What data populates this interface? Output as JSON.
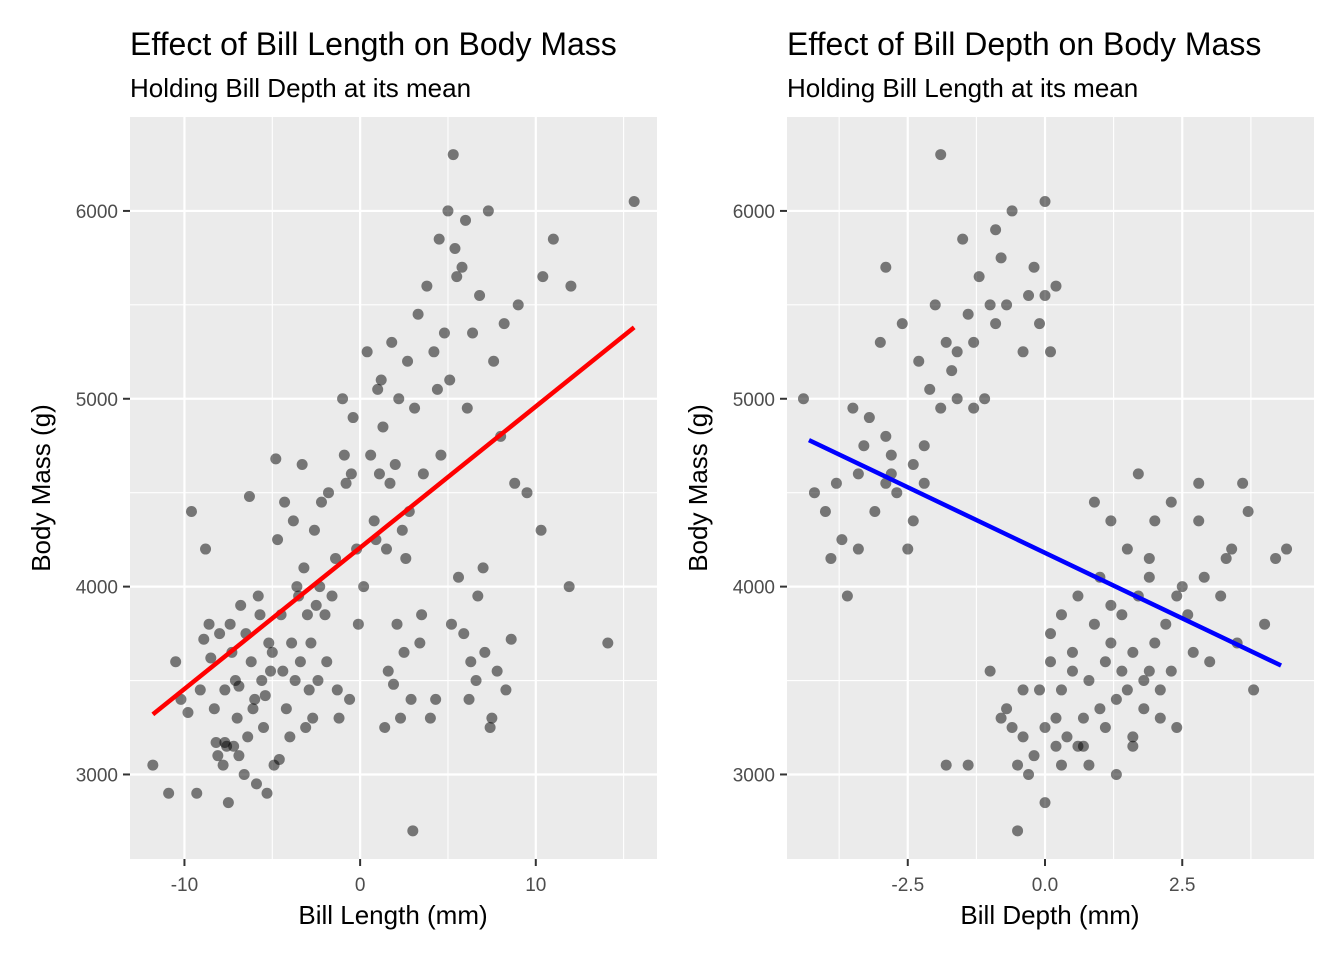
{
  "chart_data": [
    {
      "type": "scatter",
      "title": "Effect of Bill Length on Body Mass",
      "subtitle": "Holding Bill Depth at its mean",
      "xlabel": "Bill Length (mm)",
      "ylabel": "Body Mass (g)",
      "xlim": [
        -13.1,
        16.9
      ],
      "ylim": [
        2550,
        6500
      ],
      "x_ticks": [
        -10,
        0,
        10
      ],
      "x_tick_labels": [
        "-10",
        "0",
        "10"
      ],
      "x_minor_ticks": [
        -5,
        5,
        15
      ],
      "y_ticks": [
        3000,
        4000,
        5000,
        6000
      ],
      "y_tick_labels": [
        "3000",
        "4000",
        "5000",
        "6000"
      ],
      "y_minor_ticks": [
        3500,
        4500,
        5500
      ],
      "grid": true,
      "point_color": "#000000",
      "point_opacity": 0.5,
      "line_color": "#ff0000",
      "fit_line": {
        "x": [
          -11.8,
          15.6
        ],
        "y": [
          3320,
          5380
        ]
      },
      "points": [
        [
          -11.8,
          3050
        ],
        [
          -10.9,
          2900
        ],
        [
          -10.5,
          3600
        ],
        [
          -10.2,
          3400
        ],
        [
          -9.8,
          3330
        ],
        [
          -9.6,
          4400
        ],
        [
          -9.3,
          2900
        ],
        [
          -9.1,
          3450
        ],
        [
          -8.9,
          3720
        ],
        [
          -8.8,
          4200
        ],
        [
          -8.6,
          3800
        ],
        [
          -8.5,
          3620
        ],
        [
          -8.3,
          3350
        ],
        [
          -8.2,
          3170
        ],
        [
          -8.1,
          3100
        ],
        [
          -8.0,
          3750
        ],
        [
          -7.8,
          3050
        ],
        [
          -7.7,
          3450
        ],
        [
          -7.6,
          3150
        ],
        [
          -7.5,
          2850
        ],
        [
          -7.4,
          3800
        ],
        [
          -7.3,
          3650
        ],
        [
          -7.2,
          3150
        ],
        [
          -7.1,
          3500
        ],
        [
          -7.0,
          3300
        ],
        [
          -6.9,
          3470
        ],
        [
          -6.8,
          3900
        ],
        [
          -6.6,
          3000
        ],
        [
          -6.5,
          3750
        ],
        [
          -6.4,
          3200
        ],
        [
          -6.3,
          4480
        ],
        [
          -6.2,
          3600
        ],
        [
          -6.0,
          3400
        ],
        [
          -5.9,
          2950
        ],
        [
          -5.8,
          3950
        ],
        [
          -5.7,
          3850
        ],
        [
          -5.6,
          3500
        ],
        [
          -5.5,
          3250
        ],
        [
          -5.3,
          2900
        ],
        [
          -5.2,
          3700
        ],
        [
          -5.1,
          3550
        ],
        [
          -5.0,
          3650
        ],
        [
          -4.9,
          3050
        ],
        [
          -4.8,
          4680
        ],
        [
          -4.7,
          4250
        ],
        [
          -4.5,
          3850
        ],
        [
          -4.4,
          3550
        ],
        [
          -4.3,
          4450
        ],
        [
          -4.2,
          3350
        ],
        [
          -4.0,
          3200
        ],
        [
          -3.9,
          3700
        ],
        [
          -3.8,
          4350
        ],
        [
          -3.7,
          3500
        ],
        [
          -3.6,
          4000
        ],
        [
          -3.4,
          3600
        ],
        [
          -3.3,
          4650
        ],
        [
          -3.2,
          4100
        ],
        [
          -3.1,
          3250
        ],
        [
          -3.0,
          3850
        ],
        [
          -2.9,
          3450
        ],
        [
          -2.8,
          3700
        ],
        [
          -2.6,
          4300
        ],
        [
          -2.4,
          3500
        ],
        [
          -2.3,
          4000
        ],
        [
          -2.2,
          4450
        ],
        [
          -2.0,
          3850
        ],
        [
          -1.9,
          3600
        ],
        [
          -1.8,
          4500
        ],
        [
          -1.6,
          3950
        ],
        [
          -1.4,
          4150
        ],
        [
          -1.2,
          3300
        ],
        [
          -1.0,
          5000
        ],
        [
          -0.9,
          4700
        ],
        [
          -0.8,
          4550
        ],
        [
          -0.6,
          3400
        ],
        [
          -0.5,
          4600
        ],
        [
          -0.4,
          4900
        ],
        [
          -0.2,
          4200
        ],
        [
          0.2,
          4000
        ],
        [
          0.4,
          5250
        ],
        [
          0.6,
          4700
        ],
        [
          0.8,
          4350
        ],
        [
          1.0,
          5050
        ],
        [
          1.1,
          4600
        ],
        [
          1.2,
          5100
        ],
        [
          1.3,
          4850
        ],
        [
          1.4,
          3250
        ],
        [
          1.5,
          4200
        ],
        [
          1.6,
          3550
        ],
        [
          1.8,
          5300
        ],
        [
          2.0,
          4650
        ],
        [
          2.1,
          3800
        ],
        [
          2.2,
          5000
        ],
        [
          2.3,
          3300
        ],
        [
          2.4,
          4300
        ],
        [
          2.5,
          3650
        ],
        [
          2.6,
          4150
        ],
        [
          2.7,
          5200
        ],
        [
          2.9,
          3400
        ],
        [
          3.0,
          2700
        ],
        [
          3.1,
          4950
        ],
        [
          3.3,
          5450
        ],
        [
          3.4,
          3700
        ],
        [
          3.6,
          4600
        ],
        [
          3.8,
          5600
        ],
        [
          4.0,
          3300
        ],
        [
          4.2,
          5250
        ],
        [
          4.3,
          3400
        ],
        [
          4.5,
          5850
        ],
        [
          4.6,
          4700
        ],
        [
          4.8,
          5350
        ],
        [
          5.0,
          6000
        ],
        [
          5.1,
          5100
        ],
        [
          5.2,
          3800
        ],
        [
          5.3,
          6300
        ],
        [
          5.4,
          5800
        ],
        [
          5.6,
          4050
        ],
        [
          5.8,
          5700
        ],
        [
          5.9,
          3750
        ],
        [
          6.0,
          5950
        ],
        [
          6.1,
          4950
        ],
        [
          6.2,
          3400
        ],
        [
          6.4,
          5350
        ],
        [
          6.6,
          3500
        ],
        [
          6.8,
          5550
        ],
        [
          7.0,
          4100
        ],
        [
          7.1,
          3650
        ],
        [
          7.3,
          6000
        ],
        [
          7.5,
          3300
        ],
        [
          7.6,
          5200
        ],
        [
          7.8,
          3550
        ],
        [
          8.0,
          4800
        ],
        [
          8.2,
          5400
        ],
        [
          8.3,
          3450
        ],
        [
          8.6,
          3720
        ],
        [
          8.8,
          4550
        ],
        [
          9.5,
          4500
        ],
        [
          10.3,
          4300
        ],
        [
          10.4,
          5650
        ],
        [
          11.0,
          5850
        ],
        [
          11.9,
          4000
        ],
        [
          12.0,
          5600
        ],
        [
          14.1,
          3700
        ],
        [
          15.6,
          6050
        ],
        [
          -7.7,
          3170
        ],
        [
          -6.9,
          3100
        ],
        [
          -6.1,
          3350
        ],
        [
          -5.4,
          3420
        ],
        [
          -4.6,
          3080
        ],
        [
          -3.5,
          3950
        ],
        [
          -2.7,
          3300
        ],
        [
          -2.5,
          3900
        ],
        [
          -1.3,
          3450
        ],
        [
          -0.1,
          3800
        ],
        [
          0.9,
          4250
        ],
        [
          1.7,
          4550
        ],
        [
          1.9,
          3480
        ],
        [
          2.8,
          4400
        ],
        [
          3.5,
          3850
        ],
        [
          4.4,
          5050
        ],
        [
          5.5,
          5650
        ],
        [
          6.3,
          3600
        ],
        [
          6.7,
          3950
        ],
        [
          7.4,
          3250
        ],
        [
          9.0,
          5500
        ]
      ]
    },
    {
      "type": "scatter",
      "title": "Effect of Bill Depth on Body Mass",
      "subtitle": "Holding Bill Length at its mean",
      "xlabel": "Bill Depth (mm)",
      "ylabel": "Body Mass (g)",
      "xlim": [
        -4.7,
        4.9
      ],
      "ylim": [
        2550,
        6500
      ],
      "x_ticks": [
        -2.5,
        0.0,
        2.5
      ],
      "x_tick_labels": [
        "-2.5",
        "0.0",
        "2.5"
      ],
      "x_minor_ticks": [
        -3.75,
        -1.25,
        1.25,
        3.75
      ],
      "y_ticks": [
        3000,
        4000,
        5000,
        6000
      ],
      "y_tick_labels": [
        "3000",
        "4000",
        "5000",
        "6000"
      ],
      "y_minor_ticks": [
        3500,
        4500,
        5500
      ],
      "grid": true,
      "point_color": "#000000",
      "point_opacity": 0.5,
      "line_color": "#0000ff",
      "fit_line": {
        "x": [
          -4.3,
          4.3
        ],
        "y": [
          4780,
          3580
        ]
      },
      "points": [
        [
          -4.4,
          5000
        ],
        [
          -4.2,
          4500
        ],
        [
          -4.0,
          4400
        ],
        [
          -3.9,
          4150
        ],
        [
          -3.8,
          4550
        ],
        [
          -3.7,
          4250
        ],
        [
          -3.6,
          3950
        ],
        [
          -3.5,
          4950
        ],
        [
          -3.4,
          4200
        ],
        [
          -3.4,
          4600
        ],
        [
          -3.3,
          4750
        ],
        [
          -3.2,
          4900
        ],
        [
          -3.1,
          4400
        ],
        [
          -3.0,
          5300
        ],
        [
          -2.9,
          5700
        ],
        [
          -2.9,
          4800
        ],
        [
          -2.8,
          4600
        ],
        [
          -2.7,
          4500
        ],
        [
          -2.6,
          5400
        ],
        [
          -2.5,
          4200
        ],
        [
          -2.4,
          4650
        ],
        [
          -2.3,
          5200
        ],
        [
          -2.2,
          4550
        ],
        [
          -2.1,
          5050
        ],
        [
          -2.0,
          5500
        ],
        [
          -1.9,
          4950
        ],
        [
          -1.9,
          6300
        ],
        [
          -1.8,
          5300
        ],
        [
          -1.7,
          5150
        ],
        [
          -1.6,
          5000
        ],
        [
          -1.5,
          5850
        ],
        [
          -1.4,
          5450
        ],
        [
          -1.3,
          5300
        ],
        [
          -1.2,
          5650
        ],
        [
          -1.1,
          5000
        ],
        [
          -1.0,
          5500
        ],
        [
          -0.9,
          5900
        ],
        [
          -0.8,
          5750
        ],
        [
          -0.7,
          5500
        ],
        [
          -0.6,
          6000
        ],
        [
          -0.4,
          5250
        ],
        [
          -0.2,
          5700
        ],
        [
          0.0,
          5550
        ],
        [
          0.0,
          6050
        ],
        [
          0.2,
          5600
        ],
        [
          -0.1,
          5400
        ],
        [
          0.1,
          5250
        ],
        [
          -2.9,
          4550
        ],
        [
          -2.8,
          4700
        ],
        [
          -2.4,
          4350
        ],
        [
          -2.2,
          4750
        ],
        [
          -1.6,
          5250
        ],
        [
          -1.3,
          4950
        ],
        [
          -0.9,
          5400
        ],
        [
          -0.3,
          5550
        ],
        [
          -1.8,
          3050
        ],
        [
          -1.4,
          3050
        ],
        [
          -1.0,
          3550
        ],
        [
          -0.8,
          3300
        ],
        [
          -0.7,
          3350
        ],
        [
          -0.6,
          3250
        ],
        [
          -0.5,
          3050
        ],
        [
          -0.5,
          2700
        ],
        [
          -0.4,
          3200
        ],
        [
          -0.3,
          3000
        ],
        [
          -0.2,
          3100
        ],
        [
          -0.1,
          3450
        ],
        [
          0.0,
          3250
        ],
        [
          0.0,
          2850
        ],
        [
          0.1,
          3600
        ],
        [
          0.1,
          3750
        ],
        [
          0.2,
          3300
        ],
        [
          0.2,
          3150
        ],
        [
          0.3,
          3450
        ],
        [
          0.3,
          3850
        ],
        [
          0.4,
          3200
        ],
        [
          0.5,
          3550
        ],
        [
          0.5,
          3650
        ],
        [
          0.6,
          3150
        ],
        [
          0.6,
          3950
        ],
        [
          0.7,
          3300
        ],
        [
          0.8,
          3050
        ],
        [
          0.8,
          3500
        ],
        [
          0.9,
          3800
        ],
        [
          0.9,
          4450
        ],
        [
          1.0,
          3350
        ],
        [
          1.0,
          4050
        ],
        [
          1.1,
          3250
        ],
        [
          1.1,
          3600
        ],
        [
          1.2,
          3700
        ],
        [
          1.2,
          4350
        ],
        [
          1.3,
          3400
        ],
        [
          1.3,
          3000
        ],
        [
          1.4,
          3550
        ],
        [
          1.4,
          3850
        ],
        [
          1.5,
          3450
        ],
        [
          1.5,
          4200
        ],
        [
          1.6,
          3150
        ],
        [
          1.6,
          3650
        ],
        [
          1.7,
          3950
        ],
        [
          1.7,
          4600
        ],
        [
          1.8,
          3500
        ],
        [
          1.8,
          3350
        ],
        [
          1.9,
          4050
        ],
        [
          1.9,
          3550
        ],
        [
          2.0,
          3700
        ],
        [
          2.0,
          4350
        ],
        [
          2.1,
          3450
        ],
        [
          2.1,
          3300
        ],
        [
          2.2,
          3800
        ],
        [
          2.3,
          4450
        ],
        [
          2.3,
          3550
        ],
        [
          2.4,
          3950
        ],
        [
          2.5,
          4000
        ],
        [
          2.6,
          3850
        ],
        [
          2.7,
          3650
        ],
        [
          2.8,
          4550
        ],
        [
          2.8,
          4350
        ],
        [
          3.0,
          3600
        ],
        [
          3.2,
          3950
        ],
        [
          3.4,
          4200
        ],
        [
          3.5,
          3700
        ],
        [
          3.6,
          4550
        ],
        [
          3.8,
          3450
        ],
        [
          4.0,
          3800
        ],
        [
          4.2,
          4150
        ],
        [
          4.4,
          4200
        ],
        [
          -0.4,
          3450
        ],
        [
          0.3,
          3050
        ],
        [
          0.7,
          3150
        ],
        [
          1.2,
          3900
        ],
        [
          1.6,
          3200
        ],
        [
          1.9,
          4150
        ],
        [
          2.4,
          3250
        ],
        [
          2.9,
          4050
        ],
        [
          3.3,
          4150
        ],
        [
          3.7,
          4400
        ]
      ]
    }
  ]
}
